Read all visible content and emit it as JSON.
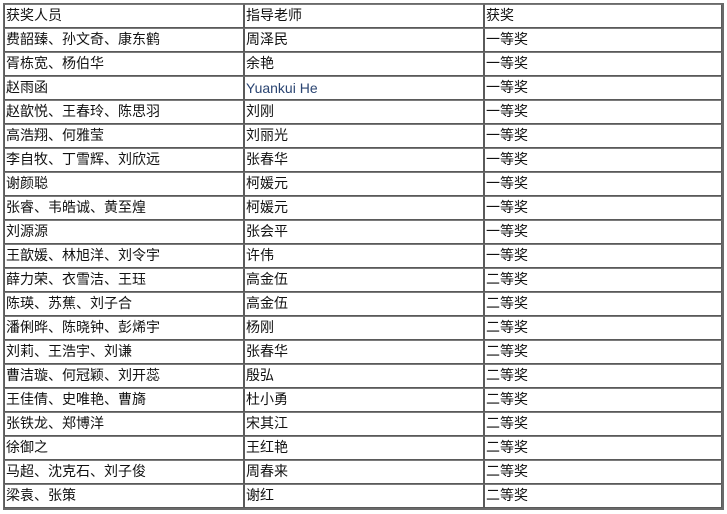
{
  "table": {
    "headers": [
      "获奖人员",
      "指导老师",
      "获奖"
    ],
    "rows": [
      [
        "费韶臻、孙文奇、康东鹤",
        "周泽民",
        "一等奖"
      ],
      [
        "胥栋宽、杨伯华",
        "余艳",
        "一等奖"
      ],
      [
        "赵雨函",
        "Yuankui He",
        "一等奖"
      ],
      [
        "赵歆悦、王春玲、陈思羽",
        "刘刚",
        "一等奖"
      ],
      [
        "高浩翔、何雅莹",
        "刘丽光",
        "一等奖"
      ],
      [
        "李自牧、丁雪辉、刘欣远",
        "张春华",
        "一等奖"
      ],
      [
        "谢颜聪",
        "柯媛元",
        "一等奖"
      ],
      [
        "张睿、韦皓诚、黄至煌",
        "柯媛元",
        "一等奖"
      ],
      [
        "刘源源",
        "张会平",
        "一等奖"
      ],
      [
        "王歆媛、林旭洋、刘令宇",
        "许伟",
        "一等奖"
      ],
      [
        "薛力荣、衣雪洁、王珏",
        "高金伍",
        "二等奖"
      ],
      [
        "陈瑛、苏蕉、刘子合",
        "高金伍",
        "二等奖"
      ],
      [
        "潘俐晔、陈晓钟、彭烯宇",
        "杨刚",
        "二等奖"
      ],
      [
        "刘莉、王浩宇、刘谦",
        "张春华",
        "二等奖"
      ],
      [
        "曹洁璇、何冠颖、刘开蕊",
        "殷弘",
        "二等奖"
      ],
      [
        "王佳倩、史唯艳、曹旖",
        "杜小勇",
        "二等奖"
      ],
      [
        "张铁龙、郑博洋",
        "宋其江",
        "二等奖"
      ],
      [
        "徐御之",
        "王红艳",
        "二等奖"
      ],
      [
        "马超、沈克石、刘子俊",
        "周春来",
        "二等奖"
      ],
      [
        "梁袁、张策",
        "谢红",
        "二等奖"
      ]
    ]
  }
}
